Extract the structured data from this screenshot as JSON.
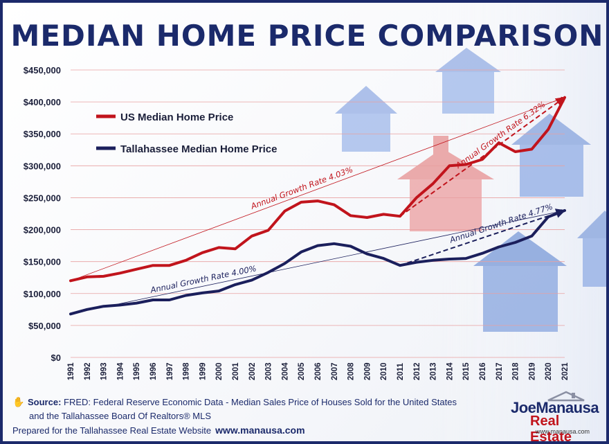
{
  "title": "MEDIAN HOME PRICE COMPARISON",
  "legend": {
    "us_label": "US Median Home Price",
    "tlh_label": "Tallahassee Median Home Price"
  },
  "annotations": {
    "us_long": "Annual Growth Rate 4.03%",
    "us_recent": "Annual Growth Rate 6.32%",
    "tlh_long": "Annual Growth Rate 4.00%",
    "tlh_recent": "Annual Growth Rate 4.77%"
  },
  "source": {
    "label": "Source:",
    "line1": "FRED: Federal Reserve Economic Data - Median Sales Price of Houses Sold for the United States",
    "line2": "and the Tallahassee Board Of Realtors® MLS",
    "line3": "Prepared for the Tallahassee Real Estate Website",
    "url": "www.manausa.com"
  },
  "logo": {
    "name": "JoeManausa",
    "sub": "Real Estate",
    "url": "www.manausa.com"
  },
  "colors": {
    "us": "#c1141c",
    "tallahassee": "#1b1f5c",
    "title": "#1b2a6b",
    "grid": "#e8a0a0"
  },
  "chart_data": {
    "type": "line",
    "title": "MEDIAN HOME PRICE COMPARISON",
    "x": [
      "1991",
      "1992",
      "1993",
      "1994",
      "1995",
      "1996",
      "1997",
      "1998",
      "1999",
      "2000",
      "2001",
      "2002",
      "2003",
      "2004",
      "2005",
      "2006",
      "2007",
      "2008",
      "2009",
      "2010",
      "2011",
      "2012",
      "2013",
      "2014",
      "2015",
      "2016",
      "2017",
      "2018",
      "2019",
      "2020",
      "2021"
    ],
    "series": [
      {
        "name": "US Median Home Price",
        "values": [
          120000,
          126000,
          127000,
          132000,
          138000,
          144000,
          144000,
          152000,
          164000,
          172000,
          170000,
          190000,
          199000,
          229000,
          243000,
          245000,
          239000,
          222000,
          219000,
          224000,
          221000,
          250000,
          272000,
          300000,
          302000,
          310000,
          336000,
          322000,
          326000,
          357000,
          407000
        ]
      },
      {
        "name": "Tallahassee Median Home Price",
        "values": [
          68000,
          75000,
          80000,
          82000,
          85000,
          90000,
          90000,
          97000,
          101000,
          104000,
          114000,
          121000,
          133000,
          147000,
          165000,
          175000,
          178000,
          174000,
          162000,
          155000,
          144000,
          149000,
          152000,
          154000,
          155000,
          163000,
          173000,
          180000,
          190000,
          220000,
          230000
        ]
      }
    ],
    "trend_lines": [
      {
        "series": "US Median Home Price",
        "from": [
          "1991",
          120000
        ],
        "to": [
          "2021",
          407000
        ],
        "label": "Annual Growth Rate 4.03%",
        "style": "solid"
      },
      {
        "series": "US Median Home Price",
        "from": [
          "2011",
          221000
        ],
        "to": [
          "2021",
          407000
        ],
        "label": "Annual Growth Rate 6.32%",
        "style": "dashed"
      },
      {
        "series": "Tallahassee Median Home Price",
        "from": [
          "1991",
          68000
        ],
        "to": [
          "2021",
          230000
        ],
        "label": "Annual Growth Rate 4.00%",
        "style": "solid"
      },
      {
        "series": "Tallahassee Median Home Price",
        "from": [
          "2011",
          144000
        ],
        "to": [
          "2021",
          230000
        ],
        "label": "Annual Growth Rate 4.77%",
        "style": "dashed"
      }
    ],
    "yticks": [
      "$0",
      "$50,000",
      "$100,000",
      "$150,000",
      "$200,000",
      "$250,000",
      "$300,000",
      "$350,000",
      "$400,000",
      "$450,000"
    ],
    "ylim": [
      0,
      450000
    ],
    "grid": true,
    "legend": "top-left"
  }
}
